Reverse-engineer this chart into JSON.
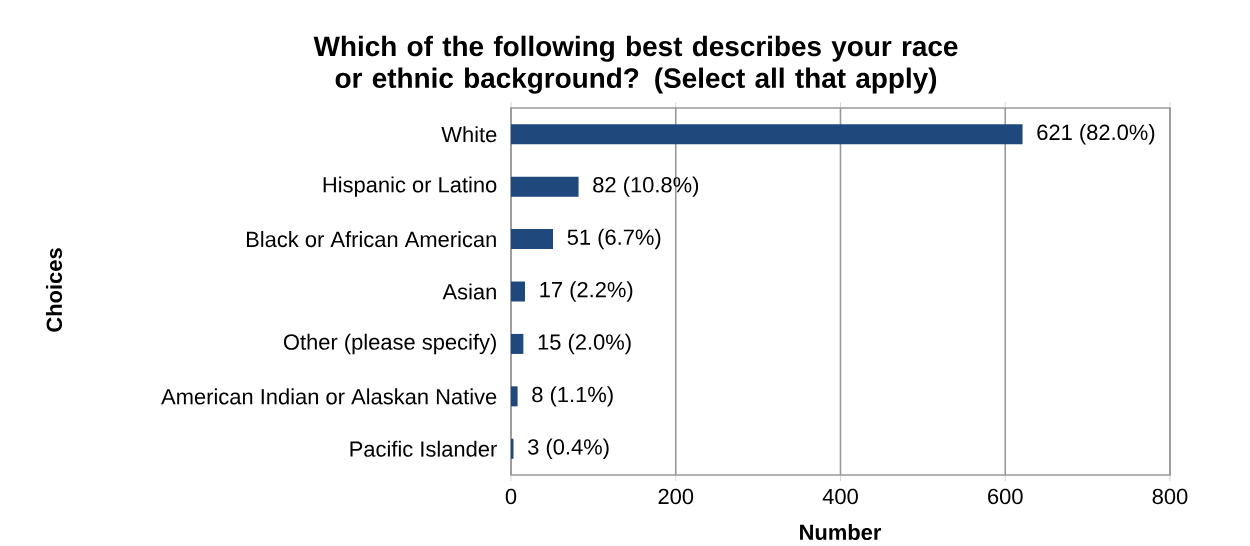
{
  "chart_data": {
    "type": "bar",
    "orientation": "horizontal",
    "title": "Which of the following best describes your race or ethnic background? (Select all that apply)",
    "xlabel": "Number",
    "ylabel": "Choices",
    "categories": [
      "White",
      "Hispanic or Latino",
      "Black or African American",
      "Asian",
      "Other (please specify)",
      "American Indian or Alaskan Native",
      "Pacific Islander"
    ],
    "values": [
      621,
      82,
      51,
      17,
      15,
      8,
      3
    ],
    "value_labels": [
      "621 (82.0%)",
      "82 (10.8%)",
      "51 (6.7%)",
      "17 (2.2%)",
      "15 (2.0%)",
      "8 (1.1%)",
      "3 (0.4%)"
    ],
    "color": "#1f497d",
    "xlim": [
      0,
      800
    ],
    "xticks": [
      0,
      200,
      400,
      600,
      800
    ],
    "grid": "x"
  }
}
